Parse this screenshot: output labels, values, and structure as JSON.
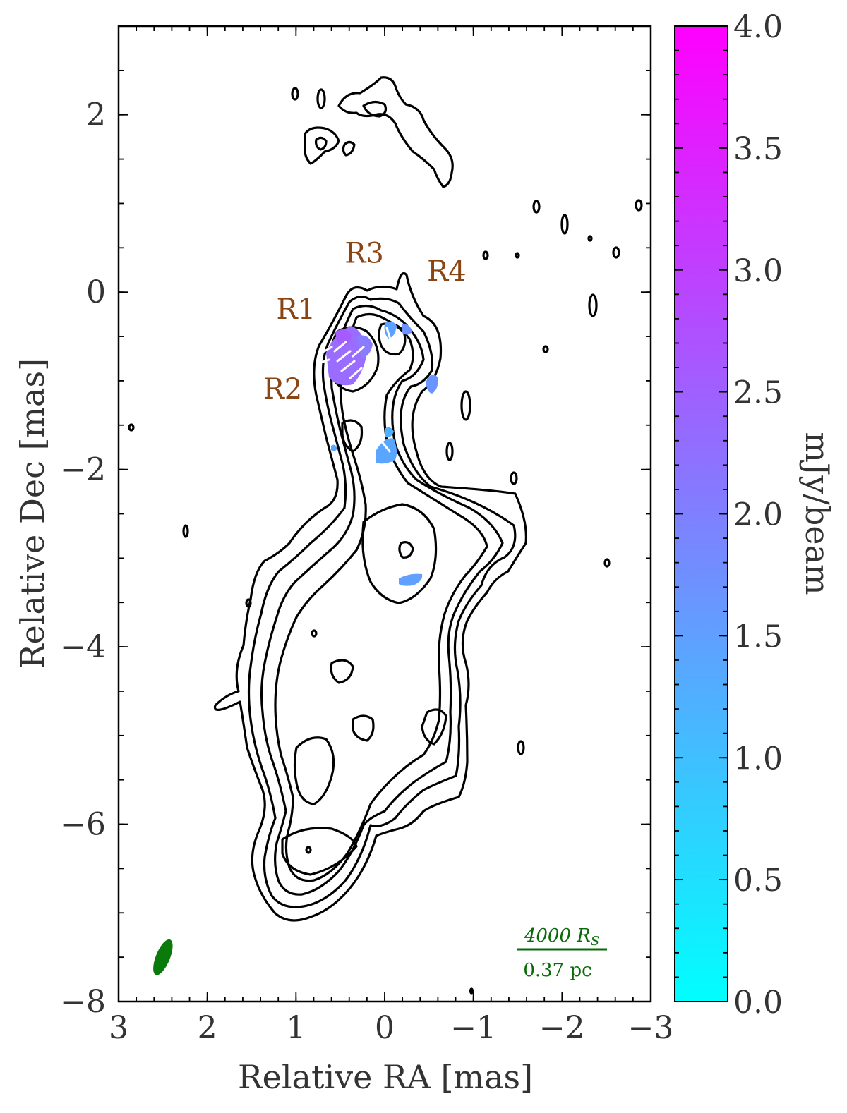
{
  "chart_data": {
    "type": "contour",
    "xlabel": "Relative RA [mas]",
    "ylabel": "Relative Dec [mas]",
    "xlim": [
      3,
      -3
    ],
    "ylim": [
      -8,
      3
    ],
    "x_ticks": [
      3,
      2,
      1,
      0,
      -1,
      -2,
      -3
    ],
    "x_tick_labels": [
      "3",
      "2",
      "1",
      "0",
      "−1",
      "−2",
      "−3"
    ],
    "y_ticks": [
      2,
      0,
      -2,
      -4,
      -6,
      -8
    ],
    "y_tick_labels": [
      "2",
      "0",
      "−2",
      "−4",
      "−6",
      "−8"
    ],
    "regions": [
      {
        "label": "R1",
        "ra": 1.0,
        "dec": -0.3
      },
      {
        "label": "R2",
        "ra": 1.15,
        "dec": -1.2
      },
      {
        "label": "R3",
        "ra": 0.23,
        "dec": 0.33
      },
      {
        "label": "R4",
        "ra": -0.7,
        "dec": 0.13
      }
    ],
    "colorbar": {
      "label": "mJy/beam",
      "range": [
        0.0,
        4.0
      ],
      "ticks": [
        0.0,
        0.5,
        1.0,
        1.5,
        2.0,
        2.5,
        3.0,
        3.5,
        4.0
      ],
      "tick_labels": [
        "0.0",
        "0.5",
        "1.0",
        "1.5",
        "2.0",
        "2.5",
        "3.0",
        "3.5",
        "4.0"
      ],
      "colormap": "cool",
      "color_min": "#00ffff",
      "color_max": "#ff00ff"
    },
    "scale_bar": {
      "top_label": "4000 R",
      "top_label_sub": "S",
      "bottom_label": "0.37 pc",
      "color": "#0a6a0a"
    },
    "beam": {
      "ra": 2.5,
      "dec": -7.5,
      "color": "#0a7a0a"
    },
    "contour_color": "#000000"
  }
}
